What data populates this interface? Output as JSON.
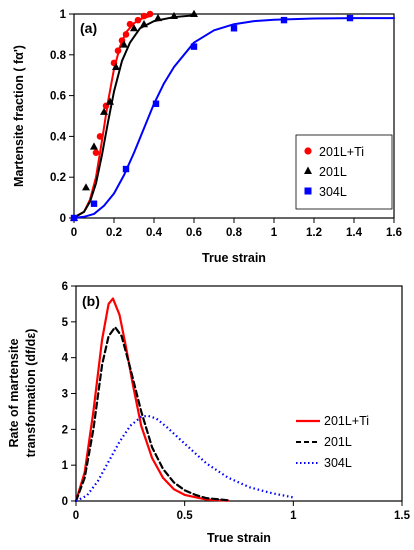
{
  "chart_data": [
    {
      "type": "line",
      "panel_label": "(a)",
      "xlabel": "True strain",
      "ylabel": "Martensite fraction ( fα')",
      "xlim": [
        0,
        1.6
      ],
      "ylim": [
        0,
        1
      ],
      "xticks": [
        0,
        0.2,
        0.4,
        0.6,
        0.8,
        1.0,
        1.2,
        1.4,
        1.6
      ],
      "xtick_labels": [
        "0",
        "0.2",
        "0.4",
        "0.6",
        "0.8",
        "1",
        "1.2",
        "1.4",
        "1.6"
      ],
      "yticks": [
        0,
        0.2,
        0.4,
        0.6,
        0.8,
        1
      ],
      "ytick_labels": [
        "0",
        "0.2",
        "0.4",
        "0.6",
        "0.8",
        "1"
      ],
      "legend_position": "right",
      "series": [
        {
          "name": "201L+Ti",
          "color": "#ff0000",
          "marker": "circle",
          "points": [
            [
              0,
              0
            ],
            [
              0.11,
              0.32
            ],
            [
              0.13,
              0.4
            ],
            [
              0.16,
              0.55
            ],
            [
              0.2,
              0.76
            ],
            [
              0.22,
              0.82
            ],
            [
              0.24,
              0.87
            ],
            [
              0.26,
              0.9
            ],
            [
              0.28,
              0.95
            ],
            [
              0.32,
              0.97
            ],
            [
              0.35,
              0.99
            ],
            [
              0.38,
              1.0
            ]
          ],
          "fit": [
            [
              0,
              0.003
            ],
            [
              0.05,
              0.03
            ],
            [
              0.08,
              0.09
            ],
            [
              0.11,
              0.2
            ],
            [
              0.14,
              0.38
            ],
            [
              0.17,
              0.57
            ],
            [
              0.2,
              0.73
            ],
            [
              0.23,
              0.84
            ],
            [
              0.26,
              0.91
            ],
            [
              0.3,
              0.955
            ],
            [
              0.34,
              0.978
            ],
            [
              0.38,
              0.99
            ]
          ]
        },
        {
          "name": "201L",
          "color": "#000000",
          "marker": "triangle",
          "points": [
            [
              0,
              0
            ],
            [
              0.06,
              0.15
            ],
            [
              0.1,
              0.35
            ],
            [
              0.15,
              0.52
            ],
            [
              0.18,
              0.57
            ],
            [
              0.21,
              0.74
            ],
            [
              0.25,
              0.85
            ],
            [
              0.3,
              0.93
            ],
            [
              0.35,
              0.95
            ],
            [
              0.42,
              0.98
            ],
            [
              0.5,
              0.99
            ],
            [
              0.6,
              1.0
            ]
          ],
          "fit": [
            [
              0,
              0.002
            ],
            [
              0.05,
              0.03
            ],
            [
              0.08,
              0.08
            ],
            [
              0.11,
              0.17
            ],
            [
              0.14,
              0.31
            ],
            [
              0.17,
              0.47
            ],
            [
              0.2,
              0.62
            ],
            [
              0.24,
              0.77
            ],
            [
              0.28,
              0.86
            ],
            [
              0.33,
              0.93
            ],
            [
              0.4,
              0.965
            ],
            [
              0.5,
              0.985
            ],
            [
              0.6,
              0.993
            ]
          ]
        },
        {
          "name": "304L",
          "color": "#0000ff",
          "marker": "square",
          "points": [
            [
              0,
              0
            ],
            [
              0.1,
              0.07
            ],
            [
              0.26,
              0.24
            ],
            [
              0.41,
              0.56
            ],
            [
              0.6,
              0.84
            ],
            [
              0.8,
              0.93
            ],
            [
              1.05,
              0.97
            ],
            [
              1.38,
              0.98
            ]
          ],
          "fit": [
            [
              0,
              0.0
            ],
            [
              0.05,
              0.006
            ],
            [
              0.1,
              0.02
            ],
            [
              0.15,
              0.06
            ],
            [
              0.2,
              0.12
            ],
            [
              0.25,
              0.21
            ],
            [
              0.3,
              0.32
            ],
            [
              0.35,
              0.44
            ],
            [
              0.4,
              0.56
            ],
            [
              0.45,
              0.66
            ],
            [
              0.5,
              0.74
            ],
            [
              0.6,
              0.86
            ],
            [
              0.7,
              0.92
            ],
            [
              0.8,
              0.95
            ],
            [
              0.9,
              0.965
            ],
            [
              1.0,
              0.972
            ],
            [
              1.2,
              0.978
            ],
            [
              1.4,
              0.98
            ],
            [
              1.6,
              0.98
            ]
          ]
        }
      ]
    },
    {
      "type": "line",
      "panel_label": "(b)",
      "xlabel": "True strain",
      "ylabel_lines": [
        "Rate of martensite",
        "transformation (df/dε)"
      ],
      "xlim": [
        0,
        1.5
      ],
      "ylim": [
        0,
        6
      ],
      "xticks": [
        0,
        0.5,
        1,
        1.5
      ],
      "xtick_labels": [
        "0",
        "0.5",
        "1",
        "1.5"
      ],
      "yticks": [
        0,
        1,
        2,
        3,
        4,
        5,
        6
      ],
      "ytick_labels": [
        "0",
        "1",
        "2",
        "3",
        "4",
        "5",
        "6"
      ],
      "legend_position": "right",
      "series": [
        {
          "name": "201L+Ti",
          "color": "#ff0000",
          "style": "solid",
          "points": [
            [
              0,
              0
            ],
            [
              0.04,
              0.8
            ],
            [
              0.08,
              2.5
            ],
            [
              0.12,
              4.5
            ],
            [
              0.15,
              5.5
            ],
            [
              0.17,
              5.65
            ],
            [
              0.2,
              5.2
            ],
            [
              0.23,
              4.3
            ],
            [
              0.26,
              3.3
            ],
            [
              0.3,
              2.1
            ],
            [
              0.35,
              1.2
            ],
            [
              0.4,
              0.65
            ],
            [
              0.45,
              0.33
            ],
            [
              0.5,
              0.17
            ],
            [
              0.6,
              0.04
            ],
            [
              0.7,
              0.01
            ]
          ]
        },
        {
          "name": "201L",
          "color": "#000000",
          "style": "dashed",
          "points": [
            [
              0,
              0
            ],
            [
              0.04,
              0.65
            ],
            [
              0.08,
              2.0
            ],
            [
              0.12,
              3.8
            ],
            [
              0.15,
              4.6
            ],
            [
              0.18,
              4.85
            ],
            [
              0.21,
              4.6
            ],
            [
              0.25,
              3.7
            ],
            [
              0.3,
              2.5
            ],
            [
              0.35,
              1.5
            ],
            [
              0.4,
              0.9
            ],
            [
              0.45,
              0.52
            ],
            [
              0.5,
              0.3
            ],
            [
              0.55,
              0.17
            ],
            [
              0.6,
              0.08
            ],
            [
              0.7,
              0.02
            ]
          ]
        },
        {
          "name": "304L",
          "color": "#0000ff",
          "style": "dotted",
          "points": [
            [
              0,
              0
            ],
            [
              0.05,
              0.15
            ],
            [
              0.1,
              0.55
            ],
            [
              0.15,
              1.1
            ],
            [
              0.2,
              1.65
            ],
            [
              0.25,
              2.1
            ],
            [
              0.3,
              2.35
            ],
            [
              0.33,
              2.38
            ],
            [
              0.37,
              2.3
            ],
            [
              0.42,
              2.05
            ],
            [
              0.5,
              1.6
            ],
            [
              0.6,
              1.05
            ],
            [
              0.7,
              0.65
            ],
            [
              0.8,
              0.38
            ],
            [
              0.9,
              0.22
            ],
            [
              1.0,
              0.1
            ]
          ]
        }
      ]
    }
  ]
}
